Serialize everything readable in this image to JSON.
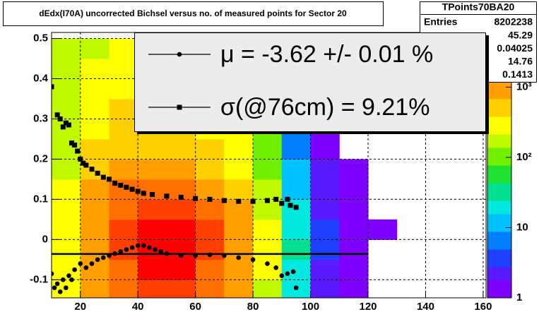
{
  "chart_data": {
    "type": "heatmap",
    "title": "dEdx(I70A) uncorrected Bichsel versus no. of measured points for Sector 20",
    "xlim": [
      10,
      161
    ],
    "xticks": [
      20,
      40,
      60,
      80,
      100,
      120,
      140,
      160
    ],
    "ylim": [
      -0.145,
      0.515
    ],
    "yticks": [
      -0.1,
      0,
      0.1,
      0.2,
      0.3,
      0.4,
      0.5
    ],
    "grid": true,
    "xbins": [
      10,
      20,
      30,
      40,
      50,
      60,
      70,
      80,
      90,
      100,
      110,
      120,
      130
    ],
    "ybins": [
      -0.15,
      -0.1,
      -0.05,
      0,
      0.05,
      0.1,
      0.15,
      0.2,
      0.25,
      0.3,
      0.35,
      0.4,
      0.45,
      0.5
    ],
    "z": [
      [
        300,
        800,
        1500,
        2500,
        2500,
        1500,
        700,
        200,
        20,
        2,
        1,
        0
      ],
      [
        300,
        900,
        2000,
        3500,
        3500,
        2000,
        900,
        250,
        25,
        2,
        1,
        0
      ],
      [
        300,
        1000,
        2200,
        4000,
        4000,
        2200,
        1000,
        300,
        30,
        3,
        1,
        0
      ],
      [
        300,
        1000,
        2200,
        3800,
        3800,
        2100,
        900,
        250,
        25,
        3,
        1,
        1
      ],
      [
        300,
        900,
        1800,
        2800,
        2800,
        1600,
        700,
        200,
        20,
        2,
        1,
        0
      ],
      [
        250,
        700,
        1200,
        1500,
        1500,
        1000,
        500,
        150,
        15,
        2,
        1,
        0
      ],
      [
        200,
        500,
        800,
        800,
        800,
        600,
        350,
        120,
        10,
        2,
        1,
        0
      ],
      [
        200,
        400,
        500,
        500,
        500,
        400,
        300,
        100,
        8,
        1,
        0,
        0
      ],
      [
        200,
        350,
        450,
        400,
        400,
        350,
        250,
        80,
        6,
        1,
        0,
        0
      ],
      [
        200,
        300,
        400,
        350,
        350,
        300,
        200,
        60,
        5,
        1,
        0,
        0
      ],
      [
        200,
        300,
        350,
        300,
        300,
        250,
        150,
        50,
        4,
        1,
        0,
        0
      ],
      [
        150,
        250,
        300,
        250,
        250,
        200,
        120,
        40,
        3,
        1,
        0,
        0
      ],
      [
        150,
        200,
        250,
        200,
        200,
        150,
        100,
        30,
        2,
        0,
        0,
        0
      ]
    ],
    "zlog": true,
    "zlim": [
      1,
      6000
    ],
    "zticks": [
      1,
      10,
      {
        "value": 100,
        "label": "10²"
      },
      {
        "value": 1000,
        "label": "10³"
      }
    ],
    "palette": [
      "#8000ff",
      "#5a1aff",
      "#2040ff",
      "#0080ff",
      "#00c0ff",
      "#00e8e0",
      "#00e090",
      "#20e030",
      "#70f000",
      "#c0f800",
      "#ffff00",
      "#ffd000",
      "#ffa000",
      "#ff7000",
      "#ff4000",
      "#ff0000"
    ],
    "fit_line": {
      "y": -0.036,
      "x": [
        10,
        120
      ],
      "color": "#000000"
    },
    "series": [
      {
        "name": "μ  = -3.62 +/-  0.01 %",
        "marker": "circle",
        "color": "#000000",
        "x": [
          10,
          11,
          12,
          13,
          14,
          15,
          16,
          17,
          18,
          20,
          22,
          24,
          26,
          28,
          30,
          32,
          34,
          36,
          38,
          40,
          42,
          44,
          46,
          48,
          50,
          55,
          60,
          65,
          70,
          75,
          80,
          85,
          88,
          90,
          92,
          94,
          95
        ],
        "values": [
          -0.085,
          -0.12,
          -0.11,
          -0.13,
          -0.1,
          -0.12,
          -0.09,
          -0.1,
          -0.075,
          -0.06,
          -0.07,
          -0.06,
          -0.05,
          -0.045,
          -0.04,
          -0.035,
          -0.03,
          -0.025,
          -0.02,
          -0.015,
          -0.015,
          -0.02,
          -0.025,
          -0.03,
          -0.035,
          -0.04,
          -0.04,
          -0.038,
          -0.04,
          -0.045,
          -0.05,
          -0.06,
          -0.07,
          -0.09,
          -0.085,
          -0.08,
          -0.12
        ]
      },
      {
        "name": "σ(@76cm) =  9.21%",
        "marker": "square",
        "color": "#000000",
        "x": [
          10,
          12,
          13,
          14,
          15,
          16,
          17,
          18,
          19,
          20,
          21,
          22,
          24,
          26,
          28,
          30,
          32,
          34,
          36,
          38,
          40,
          42,
          45,
          50,
          55,
          60,
          65,
          70,
          75,
          80,
          85,
          88,
          90,
          92,
          93,
          95
        ],
        "values": [
          0.38,
          0.31,
          0.3,
          0.28,
          0.29,
          0.285,
          0.24,
          0.235,
          0.22,
          0.2,
          0.19,
          0.185,
          0.175,
          0.165,
          0.155,
          0.15,
          0.14,
          0.135,
          0.13,
          0.125,
          0.12,
          0.115,
          0.112,
          0.108,
          0.105,
          0.102,
          0.1,
          0.097,
          0.095,
          0.095,
          0.097,
          0.1,
          0.09,
          0.1,
          0.085,
          0.08
        ]
      }
    ],
    "stats": {
      "title": "TPoints70BA20",
      "entries_label": "Entries",
      "entries": 8202238,
      "values": [
        45.29,
        0.04025,
        14.76,
        0.1413
      ]
    }
  }
}
